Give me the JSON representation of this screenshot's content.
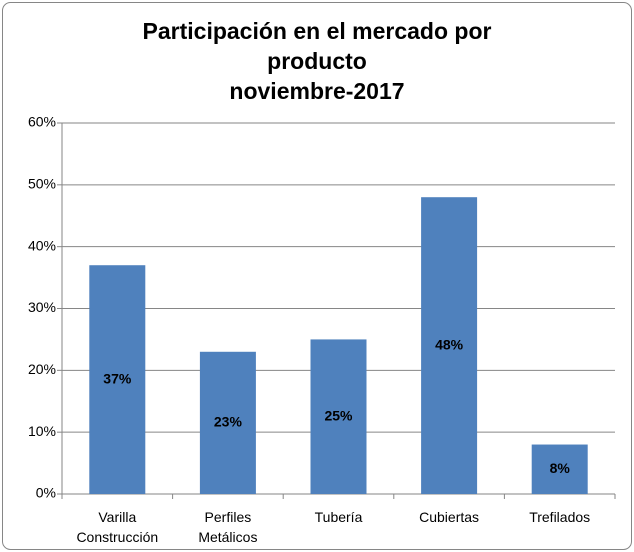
{
  "chart_data": {
    "type": "bar",
    "title": "Participación en el mercado por producto\nnoviembre-2017",
    "categories": [
      "Varilla Construcción",
      "Perfiles Metálicos",
      "Tubería",
      "Cubiertas",
      "Trefilados"
    ],
    "values": [
      37,
      23,
      25,
      48,
      8
    ],
    "value_labels": [
      "37%",
      "23%",
      "25%",
      "48%",
      "8%"
    ],
    "color": "#4f81bd",
    "ylim": [
      0,
      60
    ],
    "yticks": [
      {
        "value": 0,
        "label": "0%"
      },
      {
        "value": 10,
        "label": "10%"
      },
      {
        "value": 20,
        "label": "20%"
      },
      {
        "value": 30,
        "label": "30%"
      },
      {
        "value": 40,
        "label": "40%"
      },
      {
        "value": 50,
        "label": "50%"
      },
      {
        "value": 60,
        "label": "60%"
      }
    ],
    "grid": true
  }
}
